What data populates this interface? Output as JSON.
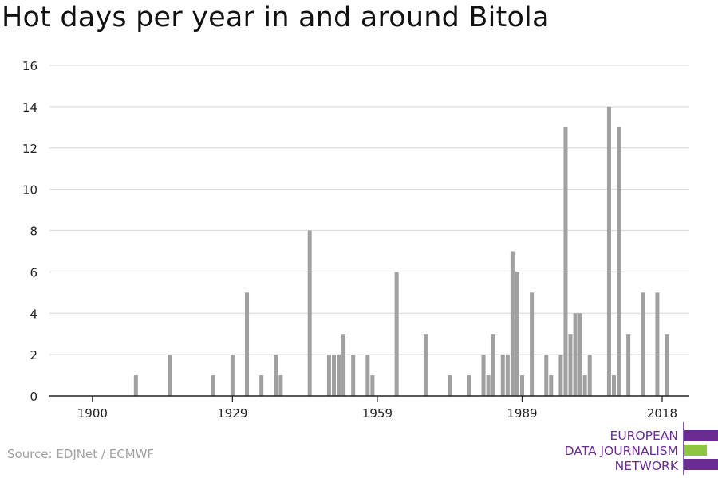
{
  "title": "Hot days per year in and around Bitola",
  "source": "Source: EDJNet / ECMWF",
  "logo": {
    "line1": "EUROPEAN",
    "line2": "DATA JOURNALISM",
    "line3": "NETWORK"
  },
  "colors": {
    "bar": "#a0a0a0",
    "grid": "#dddddd",
    "axis": "#222222",
    "logo_purple": "#6a2c91",
    "logo_green": "#8dc63f"
  },
  "chart_data": {
    "type": "bar",
    "title": "Hot days per year in and around Bitola",
    "xlabel": "",
    "ylabel": "",
    "ylim": [
      0,
      16
    ],
    "y_ticks": [
      0,
      2,
      4,
      6,
      8,
      10,
      12,
      14,
      16
    ],
    "x_ticks": [
      1900,
      1929,
      1959,
      1989,
      2018
    ],
    "grid": true,
    "series": [
      {
        "x": [
          1909,
          1916,
          1925,
          1929,
          1932,
          1935,
          1938,
          1939,
          1945,
          1949,
          1950,
          1951,
          1952,
          1954,
          1957,
          1958,
          1963,
          1969,
          1974,
          1978,
          1981,
          1982,
          1983,
          1985,
          1986,
          1987,
          1988,
          1989,
          1991,
          1994,
          1995,
          1997,
          1998,
          1999,
          2000,
          2001,
          2002,
          2003,
          2007,
          2008,
          2009,
          2011,
          2014,
          2017,
          2019
        ],
        "values": [
          1,
          2,
          1,
          2,
          5,
          1,
          2,
          1,
          8,
          2,
          2,
          2,
          3,
          2,
          2,
          1,
          6,
          3,
          1,
          1,
          2,
          1,
          3,
          2,
          2,
          7,
          6,
          1,
          5,
          2,
          1,
          2,
          13,
          3,
          4,
          4,
          1,
          2,
          14,
          1,
          13,
          3,
          5,
          5,
          3
        ]
      }
    ]
  }
}
